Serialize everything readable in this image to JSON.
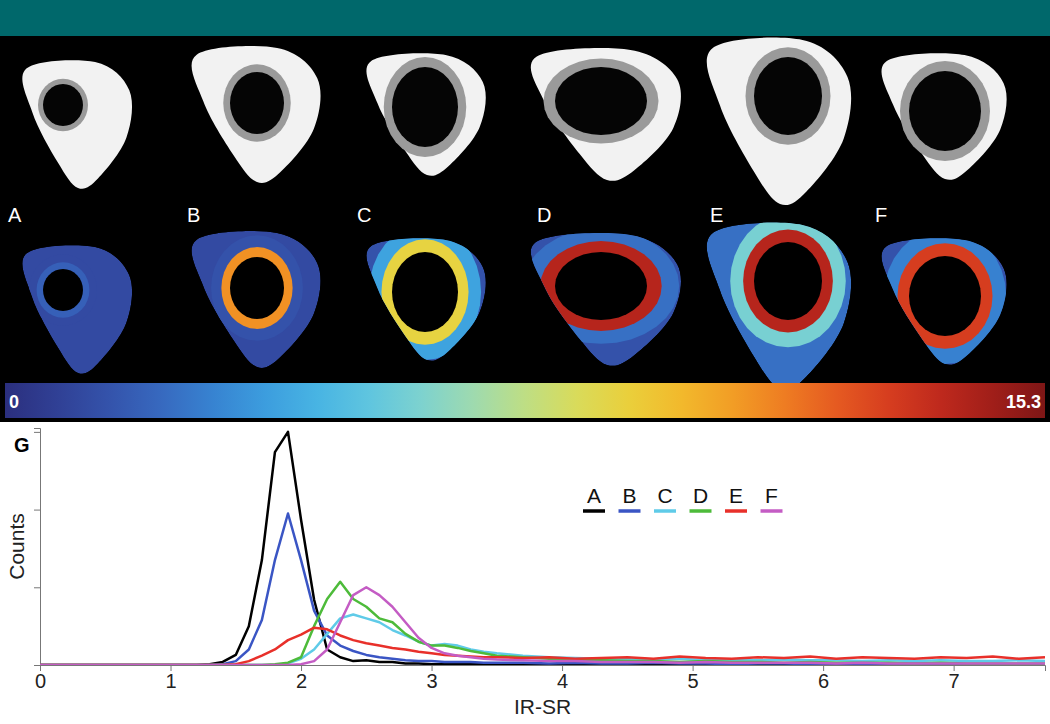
{
  "figure": {
    "panels": [
      "A",
      "B",
      "C",
      "D",
      "E",
      "F"
    ],
    "heatmap_values": [
      [
        1.2,
        1.2,
        2.0
      ],
      [
        1.2,
        1.5,
        11
      ],
      [
        1.5,
        4,
        9
      ],
      [
        1.5,
        2.5,
        14
      ],
      [
        2.5,
        6,
        14
      ],
      [
        1.5,
        3,
        13
      ]
    ],
    "colorbar": {
      "range": [
        0,
        15.3
      ],
      "ticks": [
        0,
        15.3
      ]
    }
  },
  "chart_data": {
    "type": "line",
    "title": "G",
    "x_label": "IR-SR",
    "y_label": "Counts",
    "x": [
      0,
      1,
      1.2,
      1.3,
      1.4,
      1.5,
      1.6,
      1.7,
      1.8,
      1.9,
      2,
      2.1,
      2.2,
      2.3,
      2.4,
      2.5,
      2.6,
      2.7,
      2.8,
      2.9,
      3,
      3.1,
      3.2,
      3.3,
      3.4,
      3.5,
      3.7,
      3.9,
      4.1,
      4.3,
      4.5,
      4.7,
      4.9,
      5.1,
      5.3,
      5.5,
      5.7,
      5.9,
      6.1,
      6.3,
      6.5,
      6.7,
      6.9,
      7.1,
      7.3,
      7.5,
      7.7
    ],
    "series": [
      {
        "name": "A",
        "color": "#000000",
        "values": [
          0,
          0,
          0,
          0.01,
          0.04,
          0.13,
          0.5,
          1.35,
          2.74,
          3.0,
          1.87,
          0.84,
          0.2,
          0.1,
          0.05,
          0.06,
          0.04,
          0.04,
          0.02,
          0.02,
          0.01,
          0.01,
          0.01,
          0.01,
          0.01,
          0.01,
          0.01,
          0,
          0.01,
          0,
          0.01,
          0,
          0,
          0.01,
          0,
          0,
          0.01,
          0,
          0,
          0,
          0.01,
          0,
          0,
          0,
          0,
          0,
          0
        ]
      },
      {
        "name": "B",
        "color": "#3a55c4",
        "values": [
          0,
          0,
          0,
          0,
          0.01,
          0.05,
          0.2,
          0.58,
          1.35,
          1.95,
          1.35,
          0.7,
          0.38,
          0.25,
          0.18,
          0.13,
          0.1,
          0.08,
          0.06,
          0.05,
          0.05,
          0.04,
          0.04,
          0.04,
          0.03,
          0.03,
          0.03,
          0.02,
          0.03,
          0.02,
          0.02,
          0.03,
          0.02,
          0.02,
          0.01,
          0.02,
          0.02,
          0.01,
          0.02,
          0.01,
          0.01,
          0.02,
          0.01,
          0.01,
          0.01,
          0.01,
          0.01
        ]
      },
      {
        "name": "C",
        "color": "#5fcbe8",
        "values": [
          0,
          0,
          0,
          0,
          0,
          0,
          0,
          0,
          0,
          0.02,
          0.08,
          0.2,
          0.4,
          0.6,
          0.65,
          0.6,
          0.55,
          0.45,
          0.38,
          0.3,
          0.25,
          0.27,
          0.25,
          0.2,
          0.17,
          0.15,
          0.12,
          0.1,
          0.09,
          0.08,
          0.08,
          0.07,
          0.08,
          0.06,
          0.07,
          0.06,
          0.07,
          0.06,
          0.06,
          0.05,
          0.06,
          0.05,
          0.06,
          0.05,
          0.05,
          0.06,
          0.05
        ]
      },
      {
        "name": "D",
        "color": "#4dbb3a",
        "values": [
          0,
          0,
          0,
          0,
          0,
          0,
          0,
          0,
          0.01,
          0.03,
          0.1,
          0.5,
          0.85,
          1.07,
          0.85,
          0.75,
          0.6,
          0.55,
          0.4,
          0.3,
          0.25,
          0.25,
          0.22,
          0.18,
          0.15,
          0.12,
          0.1,
          0.08,
          0.07,
          0.06,
          0.05,
          0.05,
          0.04,
          0.05,
          0.04,
          0.04,
          0.03,
          0.04,
          0.03,
          0.03,
          0.03,
          0.02,
          0.03,
          0.02,
          0.02,
          0.02,
          0.02
        ]
      },
      {
        "name": "E",
        "color": "#e8302a",
        "values": [
          0,
          0,
          0,
          0,
          0,
          0.01,
          0.05,
          0.12,
          0.2,
          0.32,
          0.39,
          0.48,
          0.46,
          0.38,
          0.32,
          0.28,
          0.25,
          0.22,
          0.2,
          0.17,
          0.15,
          0.13,
          0.12,
          0.11,
          0.1,
          0.1,
          0.09,
          0.1,
          0.08,
          0.09,
          0.1,
          0.08,
          0.11,
          0.09,
          0.08,
          0.1,
          0.09,
          0.11,
          0.08,
          0.1,
          0.09,
          0.08,
          0.1,
          0.09,
          0.11,
          0.08,
          0.1
        ]
      },
      {
        "name": "F",
        "color": "#c45cc4",
        "values": [
          0,
          0,
          0,
          0,
          0,
          0,
          0,
          0,
          0,
          0,
          0.01,
          0.05,
          0.2,
          0.55,
          0.9,
          1.0,
          0.9,
          0.75,
          0.55,
          0.35,
          0.22,
          0.15,
          0.12,
          0.1,
          0.08,
          0.07,
          0.06,
          0.05,
          0.05,
          0.04,
          0.04,
          0.04,
          0.03,
          0.04,
          0.03,
          0.03,
          0.03,
          0.03,
          0.02,
          0.03,
          0.02,
          0.02,
          0.02,
          0.02,
          0.02,
          0.02,
          0.02
        ]
      }
    ],
    "xlim": [
      0,
      7.7
    ],
    "ylim": [
      0,
      3.05
    ],
    "xticks": [
      0,
      1,
      2,
      3,
      4,
      5,
      6,
      7
    ],
    "yticks": [
      0,
      1,
      2,
      3
    ],
    "tick_labels": "x",
    "legend": "top-right",
    "grid": false
  }
}
